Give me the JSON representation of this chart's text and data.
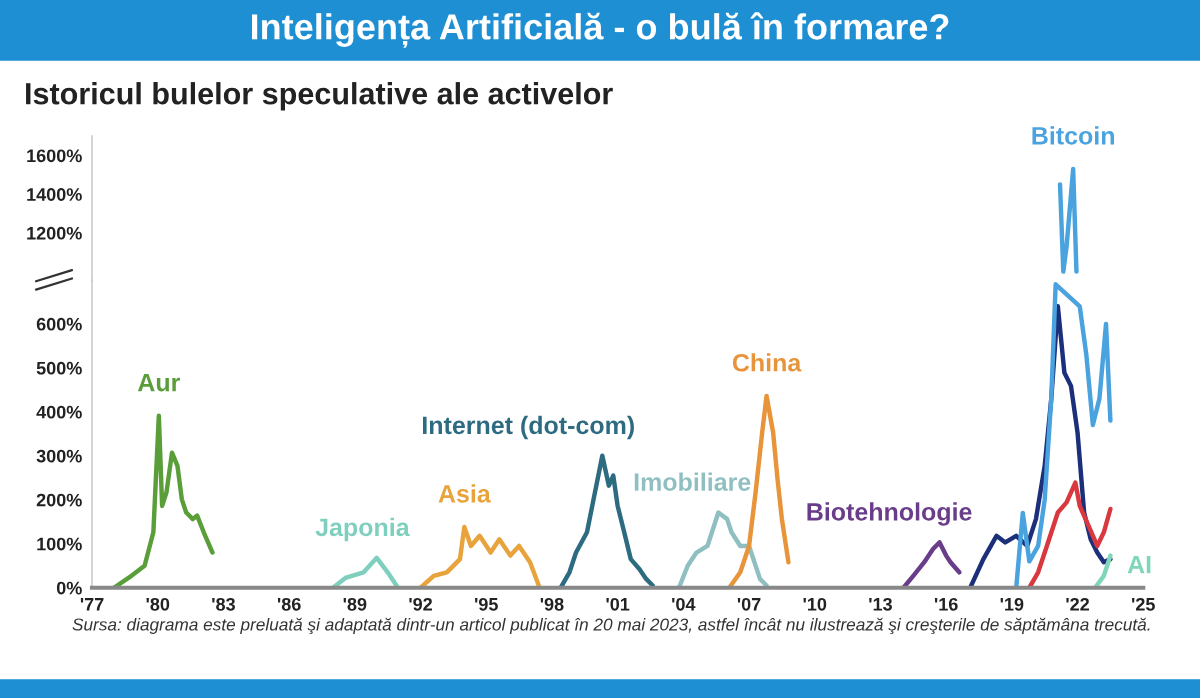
{
  "chart_data": [
    {
      "type": "line",
      "title": "Inteligența Artificială - o bulă în formare?",
      "subtitle": "Istoricul bulelor speculative ale activelor",
      "tick_labels": "y",
      "xlim": [
        1977,
        2025
      ],
      "ylim": [
        950,
        1700
      ],
      "yticks": [
        {
          "value": 1200,
          "label": "1200%"
        },
        {
          "value": 1400,
          "label": "1400%"
        },
        {
          "value": 1600,
          "label": "1600%"
        }
      ],
      "series": [
        {
          "name": "Bitcoin",
          "color": "#4aa3df",
          "x": [
            2021.2,
            2021.35,
            2021.5,
            2021.8,
            2021.95
          ],
          "values": [
            1450,
            1000,
            1130,
            1530,
            1000
          ]
        }
      ]
    },
    {
      "type": "line",
      "annotations": [
        "Sursa: diagrama este preluată şi adaptată dintr-un articol publicat în 20 mai 2023, astfel încât nu ilustrează şi creşterile de săptămâna trecută."
      ],
      "xlim": [
        1977,
        2025
      ],
      "xticks": [
        {
          "value": 1977,
          "label": "'77"
        },
        {
          "value": 1980,
          "label": "'80"
        },
        {
          "value": 1983,
          "label": "'83"
        },
        {
          "value": 1986,
          "label": "'86"
        },
        {
          "value": 1989,
          "label": "'89"
        },
        {
          "value": 1992,
          "label": "'92"
        },
        {
          "value": 1995,
          "label": "'95"
        },
        {
          "value": 1998,
          "label": "'98"
        },
        {
          "value": 2001,
          "label": "'01"
        },
        {
          "value": 2004,
          "label": "'04"
        },
        {
          "value": 2007,
          "label": "'07"
        },
        {
          "value": 2010,
          "label": "'10"
        },
        {
          "value": 2013,
          "label": "'13"
        },
        {
          "value": 2016,
          "label": "'16"
        },
        {
          "value": 2019,
          "label": "'19"
        },
        {
          "value": 2022,
          "label": "'22"
        },
        {
          "value": 2025,
          "label": "'25"
        }
      ],
      "ylim": [
        0,
        700
      ],
      "yticks": [
        {
          "value": 0,
          "label": "0%"
        },
        {
          "value": 100,
          "label": "100%"
        },
        {
          "value": 200,
          "label": "200%"
        },
        {
          "value": 300,
          "label": "300%"
        },
        {
          "value": 400,
          "label": "400%"
        },
        {
          "value": 500,
          "label": "500%"
        },
        {
          "value": 600,
          "label": "600%"
        }
      ],
      "series": [
        {
          "name": "Aur",
          "color": "#5a9e3a",
          "x": [
            1978.0,
            1978.8,
            1979.4,
            1979.8,
            1980.05,
            1980.2,
            1980.4,
            1980.65,
            1980.9,
            1981.1,
            1981.3,
            1981.6,
            1981.8,
            1982.1,
            1982.5
          ],
          "values": [
            0,
            27,
            50,
            126,
            391,
            186,
            217,
            307,
            277,
            201,
            171,
            156,
            164,
            126,
            80
          ]
        },
        {
          "name": "Japonia",
          "color": "#7fcfbf",
          "x": [
            1988.0,
            1988.6,
            1989.4,
            1990.0,
            1990.5,
            1990.9
          ],
          "values": [
            0,
            23,
            35,
            68,
            35,
            5
          ]
        },
        {
          "name": "Asia",
          "color": "#e8a33c",
          "x": [
            1992.0,
            1992.6,
            1993.2,
            1993.8,
            1994.0,
            1994.3,
            1994.7,
            1995.2,
            1995.6,
            1996.1,
            1996.5,
            1997.0,
            1997.4
          ],
          "values": [
            0,
            27,
            35,
            65,
            138,
            95,
            118,
            80,
            110,
            73,
            95,
            58,
            5
          ]
        },
        {
          "name": "Internet (dot-com)",
          "color": "#2d6b80",
          "x": [
            1998.4,
            1998.8,
            1999.1,
            1999.6,
            1999.9,
            2000.3,
            2000.6,
            2000.8,
            2001.0,
            2001.3,
            2001.6,
            2002.0,
            2002.3,
            2002.6
          ],
          "values": [
            0,
            35,
            80,
            126,
            201,
            300,
            232,
            255,
            186,
            126,
            65,
            42,
            20,
            5
          ]
        },
        {
          "name": "Imobiliare",
          "color": "#8fbfc0",
          "x": [
            2003.8,
            2004.2,
            2004.6,
            2005.1,
            2005.6,
            2006.0,
            2006.2,
            2006.6,
            2007.0,
            2007.5,
            2007.8
          ],
          "values": [
            0,
            50,
            80,
            95,
            171,
            156,
            126,
            95,
            95,
            20,
            5
          ]
        },
        {
          "name": "China",
          "color": "#e8943a",
          "x": [
            2006.1,
            2006.6,
            2007.0,
            2007.3,
            2007.6,
            2007.8,
            2008.1,
            2008.3,
            2008.5,
            2008.8
          ],
          "values": [
            0,
            35,
            95,
            217,
            353,
            436,
            353,
            247,
            156,
            58
          ]
        },
        {
          "name": "Biotehnologie",
          "color": "#6a3d8a",
          "x": [
            2014.05,
            2014.5,
            2015.0,
            2015.4,
            2015.7,
            2016.0,
            2016.2,
            2016.6
          ],
          "values": [
            0,
            27,
            58,
            88,
            103,
            73,
            58,
            35
          ]
        },
        {
          "color": "#1c2f7a",
          "x": [
            2017.1,
            2017.7,
            2018.3,
            2018.7,
            2019.2,
            2019.7,
            2020.1,
            2020.5,
            2020.8,
            2021.1,
            2021.4,
            2021.7,
            2022.0,
            2022.3,
            2022.6,
            2022.9,
            2023.2,
            2023.5
          ],
          "values": [
            0,
            65,
            118,
            103,
            118,
            95,
            156,
            277,
            429,
            640,
            489,
            459,
            353,
            171,
            110,
            80,
            58,
            65
          ]
        },
        {
          "color": "#4aa3df",
          "x": [
            2019.2,
            2019.5,
            2019.8,
            2020.2,
            2020.5,
            2020.8,
            2021.0,
            2021.2,
            2021.95,
            2022.1,
            2022.4,
            2022.7,
            2023.0,
            2023.3,
            2023.5
          ],
          "values": [
            0,
            170,
            60,
            95,
            200,
            430,
            690,
            null,
            null,
            640,
            530,
            370,
            430,
            600,
            380
          ]
        },
        {
          "color": "#d9393e",
          "x": [
            2019.8,
            2020.2,
            2020.6,
            2021.1,
            2021.5,
            2021.9,
            2022.1,
            2022.5,
            2022.9,
            2023.2,
            2023.5
          ],
          "values": [
            0,
            35,
            95,
            171,
            194,
            239,
            186,
            141,
            95,
            126,
            179
          ]
        },
        {
          "name": "AI",
          "color": "#7fd6b8",
          "x": [
            2022.8,
            2023.2,
            2023.5
          ],
          "values": [
            0,
            27,
            73
          ]
        }
      ]
    }
  ]
}
